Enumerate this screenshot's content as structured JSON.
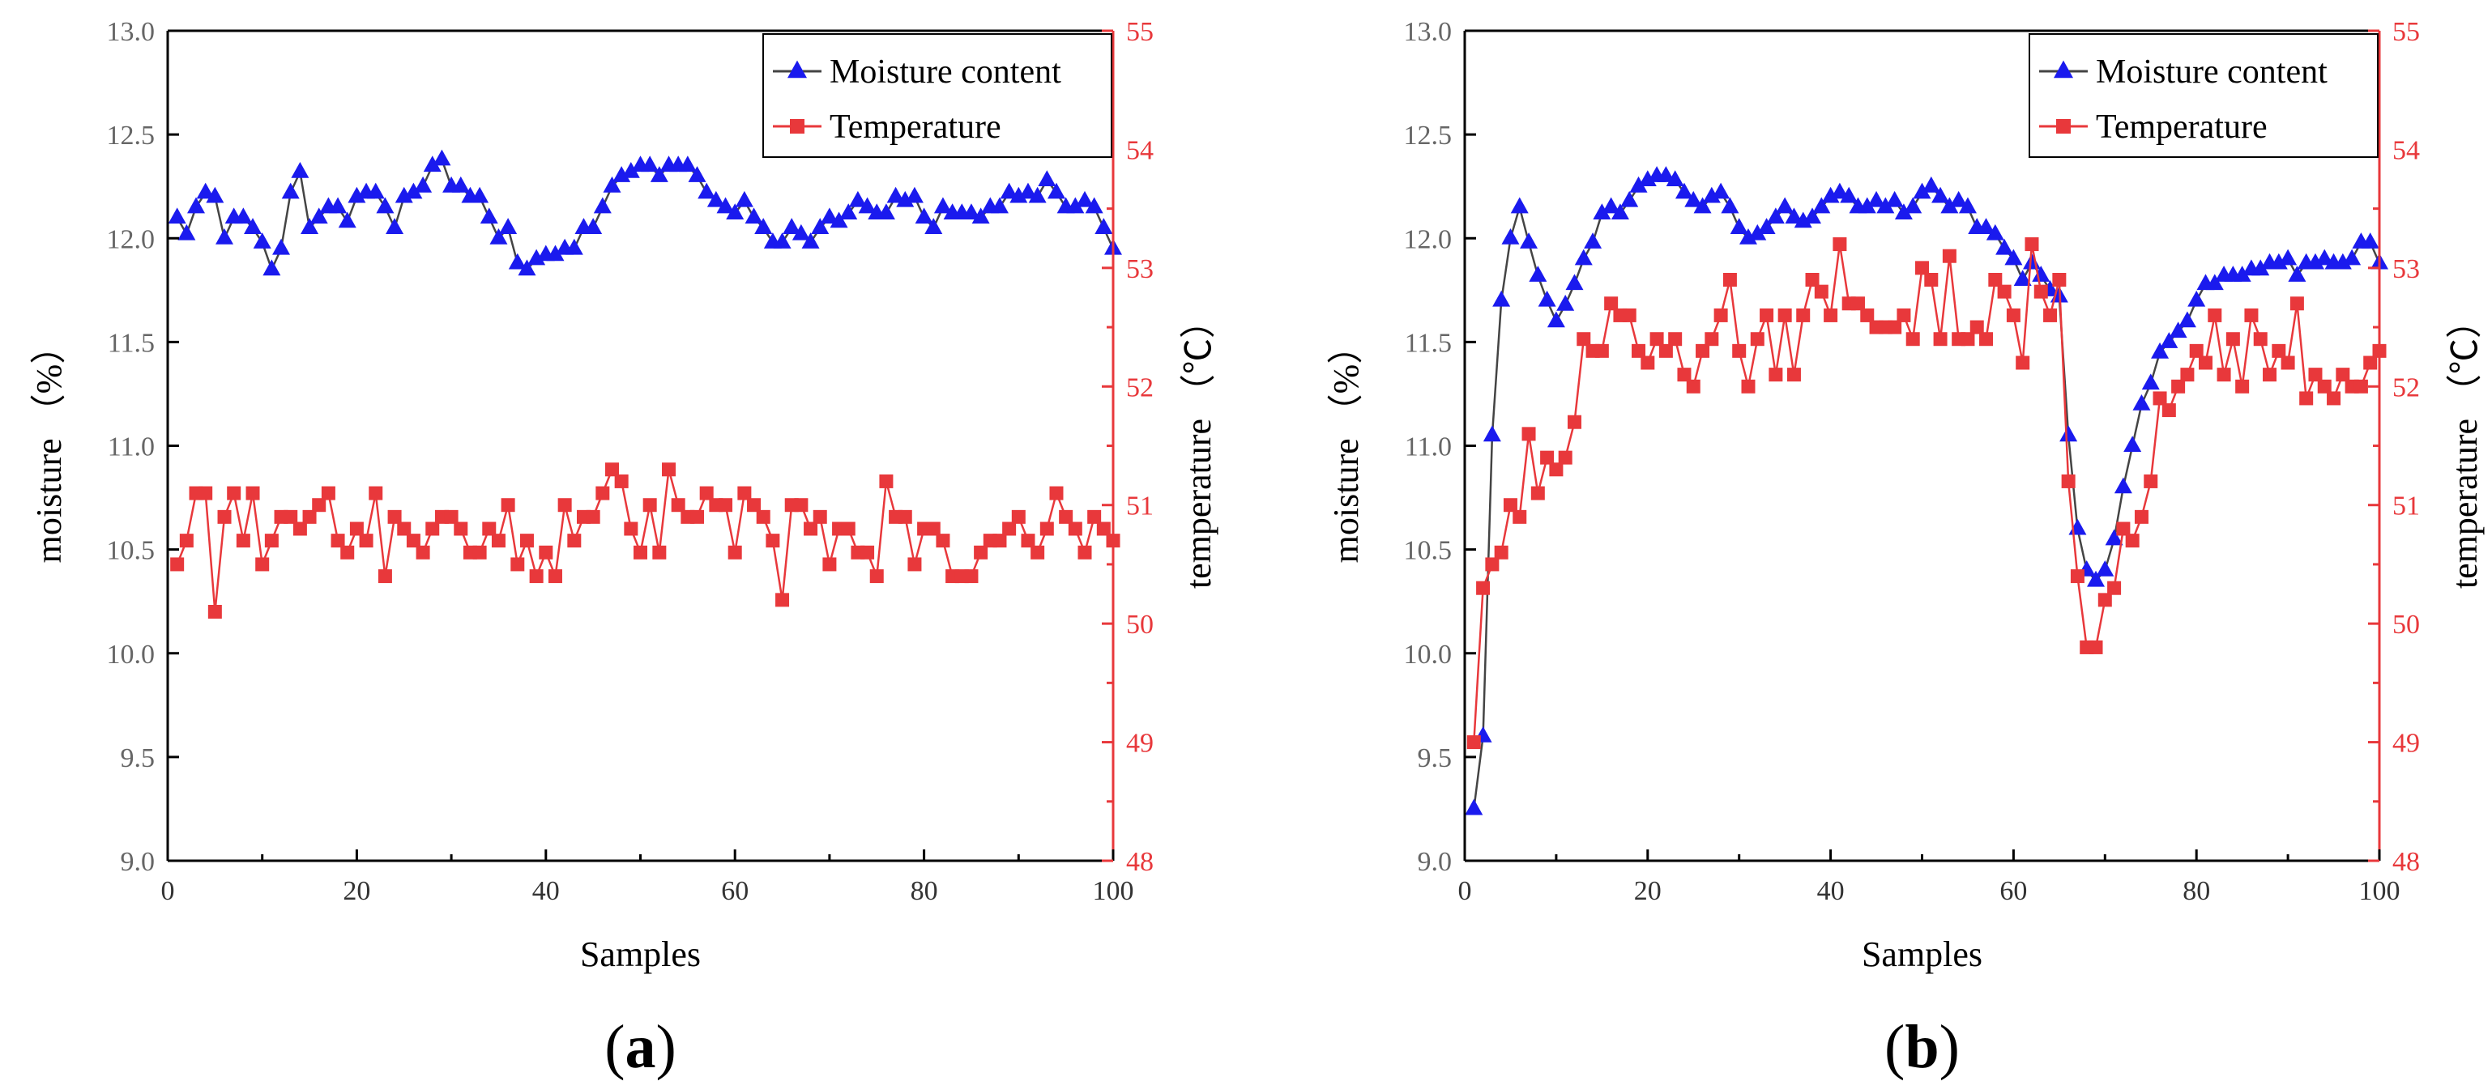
{
  "figure": {
    "background": "#ffffff"
  },
  "chart_data": [
    {
      "type": "line",
      "panel_label_open": "(",
      "panel_label_letter": "a",
      "panel_label_close": ")",
      "xlabel": "Samples",
      "ylabel": "moisture （%）",
      "y2label": "temperature （℃）",
      "xlim": [
        0,
        100
      ],
      "ylim": [
        9.0,
        13.0
      ],
      "y2lim": [
        48,
        55
      ],
      "xticks": [
        "0",
        "20",
        "40",
        "60",
        "80",
        "100"
      ],
      "yticks": [
        "9.0",
        "9.5",
        "10.0",
        "10.5",
        "11.0",
        "11.5",
        "12.0",
        "12.5",
        "13.0"
      ],
      "y2ticks": [
        "48",
        "49",
        "50",
        "51",
        "52",
        "53",
        "54",
        "55"
      ],
      "legend_position": "top-right",
      "series": [
        {
          "name": "Moisture content",
          "axis": "left",
          "marker": "triangle",
          "color": "#1a1aee",
          "line_color": "#444444",
          "x": [
            1,
            2,
            3,
            4,
            5,
            6,
            7,
            8,
            9,
            10,
            11,
            12,
            13,
            14,
            15,
            16,
            17,
            18,
            19,
            20,
            21,
            22,
            23,
            24,
            25,
            26,
            27,
            28,
            29,
            30,
            31,
            32,
            33,
            34,
            35,
            36,
            37,
            38,
            39,
            40,
            41,
            42,
            43,
            44,
            45,
            46,
            47,
            48,
            49,
            50,
            51,
            52,
            53,
            54,
            55,
            56,
            57,
            58,
            59,
            60,
            61,
            62,
            63,
            64,
            65,
            66,
            67,
            68,
            69,
            70,
            71,
            72,
            73,
            74,
            75,
            76,
            77,
            78,
            79,
            80,
            81,
            82,
            83,
            84,
            85,
            86,
            87,
            88,
            89,
            90,
            91,
            92,
            93,
            94,
            95,
            96,
            97,
            98,
            99,
            100
          ],
          "values": [
            12.1,
            12.02,
            12.15,
            12.22,
            12.2,
            12.0,
            12.1,
            12.1,
            12.05,
            11.98,
            11.85,
            11.95,
            12.22,
            12.32,
            12.05,
            12.1,
            12.15,
            12.15,
            12.08,
            12.2,
            12.22,
            12.22,
            12.15,
            12.05,
            12.2,
            12.22,
            12.25,
            12.35,
            12.38,
            12.25,
            12.25,
            12.2,
            12.2,
            12.1,
            12.0,
            12.05,
            11.88,
            11.85,
            11.9,
            11.92,
            11.92,
            11.95,
            11.95,
            12.05,
            12.05,
            12.15,
            12.25,
            12.3,
            12.32,
            12.35,
            12.35,
            12.3,
            12.35,
            12.35,
            12.35,
            12.3,
            12.22,
            12.18,
            12.15,
            12.12,
            12.18,
            12.1,
            12.05,
            11.98,
            11.98,
            12.05,
            12.02,
            11.98,
            12.05,
            12.1,
            12.08,
            12.12,
            12.18,
            12.15,
            12.12,
            12.12,
            12.2,
            12.18,
            12.2,
            12.1,
            12.05,
            12.15,
            12.12,
            12.12,
            12.12,
            12.1,
            12.15,
            12.15,
            12.22,
            12.2,
            12.22,
            12.2,
            12.28,
            12.22,
            12.15,
            12.15,
            12.18,
            12.15,
            12.05,
            11.95
          ]
        },
        {
          "name": "Temperature",
          "axis": "right",
          "marker": "square",
          "color": "#e8383b",
          "line_color": "#e8383b",
          "x": [
            1,
            2,
            3,
            4,
            5,
            6,
            7,
            8,
            9,
            10,
            11,
            12,
            13,
            14,
            15,
            16,
            17,
            18,
            19,
            20,
            21,
            22,
            23,
            24,
            25,
            26,
            27,
            28,
            29,
            30,
            31,
            32,
            33,
            34,
            35,
            36,
            37,
            38,
            39,
            40,
            41,
            42,
            43,
            44,
            45,
            46,
            47,
            48,
            49,
            50,
            51,
            52,
            53,
            54,
            55,
            56,
            57,
            58,
            59,
            60,
            61,
            62,
            63,
            64,
            65,
            66,
            67,
            68,
            69,
            70,
            71,
            72,
            73,
            74,
            75,
            76,
            77,
            78,
            79,
            80,
            81,
            82,
            83,
            84,
            85,
            86,
            87,
            88,
            89,
            90,
            91,
            92,
            93,
            94,
            95,
            96,
            97,
            98,
            99,
            100
          ],
          "values": [
            50.5,
            50.7,
            51.1,
            51.1,
            50.1,
            50.9,
            51.1,
            50.7,
            51.1,
            50.5,
            50.7,
            50.9,
            50.9,
            50.8,
            50.9,
            51.0,
            51.1,
            50.7,
            50.6,
            50.8,
            50.7,
            51.1,
            50.4,
            50.9,
            50.8,
            50.7,
            50.6,
            50.8,
            50.9,
            50.9,
            50.8,
            50.6,
            50.6,
            50.8,
            50.7,
            51.0,
            50.5,
            50.7,
            50.4,
            50.6,
            50.4,
            51.0,
            50.7,
            50.9,
            50.9,
            51.1,
            51.3,
            51.2,
            50.8,
            50.6,
            51.0,
            50.6,
            51.3,
            51.0,
            50.9,
            50.9,
            51.1,
            51.0,
            51.0,
            50.6,
            51.1,
            51.0,
            50.9,
            50.7,
            50.2,
            51.0,
            51.0,
            50.8,
            50.9,
            50.5,
            50.8,
            50.8,
            50.6,
            50.6,
            50.4,
            51.2,
            50.9,
            50.9,
            50.5,
            50.8,
            50.8,
            50.7,
            50.4,
            50.4,
            50.4,
            50.6,
            50.7,
            50.7,
            50.8,
            50.9,
            50.7,
            50.6,
            50.8,
            51.1,
            50.9,
            50.8,
            50.6,
            50.9,
            50.8,
            50.7
          ]
        }
      ]
    },
    {
      "type": "line",
      "panel_label_open": "(",
      "panel_label_letter": "b",
      "panel_label_close": ")",
      "xlabel": "Samples",
      "ylabel": "moisture （%）",
      "y2label": "temperature （℃）",
      "xlim": [
        0,
        100
      ],
      "ylim": [
        9.0,
        13.0
      ],
      "y2lim": [
        48,
        55
      ],
      "xticks": [
        "0",
        "20",
        "40",
        "60",
        "80",
        "100"
      ],
      "yticks": [
        "9.0",
        "9.5",
        "10.0",
        "10.5",
        "11.0",
        "11.5",
        "12.0",
        "12.5",
        "13.0"
      ],
      "y2ticks": [
        "48",
        "49",
        "50",
        "51",
        "52",
        "53",
        "54",
        "55"
      ],
      "legend_position": "top-right",
      "series": [
        {
          "name": "Moisture content",
          "axis": "left",
          "marker": "triangle",
          "color": "#1a1aee",
          "line_color": "#444444",
          "x": [
            1,
            2,
            3,
            4,
            5,
            6,
            7,
            8,
            9,
            10,
            11,
            12,
            13,
            14,
            15,
            16,
            17,
            18,
            19,
            20,
            21,
            22,
            23,
            24,
            25,
            26,
            27,
            28,
            29,
            30,
            31,
            32,
            33,
            34,
            35,
            36,
            37,
            38,
            39,
            40,
            41,
            42,
            43,
            44,
            45,
            46,
            47,
            48,
            49,
            50,
            51,
            52,
            53,
            54,
            55,
            56,
            57,
            58,
            59,
            60,
            61,
            62,
            63,
            64,
            65,
            66,
            67,
            68,
            69,
            70,
            71,
            72,
            73,
            74,
            75,
            76,
            77,
            78,
            79,
            80,
            81,
            82,
            83,
            84,
            85,
            86,
            87,
            88,
            89,
            90,
            91,
            92,
            93,
            94,
            95,
            96,
            97,
            98,
            99,
            100
          ],
          "values": [
            9.25,
            9.6,
            11.05,
            11.7,
            12.0,
            12.15,
            11.98,
            11.82,
            11.7,
            11.6,
            11.68,
            11.78,
            11.9,
            11.98,
            12.12,
            12.15,
            12.12,
            12.18,
            12.25,
            12.28,
            12.3,
            12.3,
            12.28,
            12.22,
            12.18,
            12.15,
            12.2,
            12.22,
            12.15,
            12.05,
            12.0,
            12.02,
            12.05,
            12.1,
            12.15,
            12.1,
            12.08,
            12.1,
            12.15,
            12.2,
            12.22,
            12.2,
            12.15,
            12.15,
            12.18,
            12.15,
            12.18,
            12.12,
            12.15,
            12.22,
            12.25,
            12.2,
            12.15,
            12.18,
            12.15,
            12.05,
            12.05,
            12.02,
            11.95,
            11.9,
            11.8,
            11.88,
            11.82,
            11.75,
            11.72,
            11.05,
            10.6,
            10.4,
            10.35,
            10.4,
            10.55,
            10.8,
            11.0,
            11.2,
            11.3,
            11.45,
            11.5,
            11.55,
            11.6,
            11.7,
            11.78,
            11.78,
            11.82,
            11.82,
            11.82,
            11.85,
            11.85,
            11.88,
            11.88,
            11.9,
            11.82,
            11.88,
            11.88,
            11.9,
            11.88,
            11.88,
            11.9,
            11.98,
            11.98,
            11.88
          ]
        },
        {
          "name": "Temperature",
          "axis": "right",
          "marker": "square",
          "color": "#e8383b",
          "line_color": "#e8383b",
          "x": [
            1,
            2,
            3,
            4,
            5,
            6,
            7,
            8,
            9,
            10,
            11,
            12,
            13,
            14,
            15,
            16,
            17,
            18,
            19,
            20,
            21,
            22,
            23,
            24,
            25,
            26,
            27,
            28,
            29,
            30,
            31,
            32,
            33,
            34,
            35,
            36,
            37,
            38,
            39,
            40,
            41,
            42,
            43,
            44,
            45,
            46,
            47,
            48,
            49,
            50,
            51,
            52,
            53,
            54,
            55,
            56,
            57,
            58,
            59,
            60,
            61,
            62,
            63,
            64,
            65,
            66,
            67,
            68,
            69,
            70,
            71,
            72,
            73,
            74,
            75,
            76,
            77,
            78,
            79,
            80,
            81,
            82,
            83,
            84,
            85,
            86,
            87,
            88,
            89,
            90,
            91,
            92,
            93,
            94,
            95,
            96,
            97,
            98,
            99,
            100
          ],
          "values": [
            49.0,
            50.3,
            50.5,
            50.6,
            51.0,
            50.9,
            51.6,
            51.1,
            51.4,
            51.3,
            51.4,
            51.7,
            52.4,
            52.3,
            52.3,
            52.7,
            52.6,
            52.6,
            52.3,
            52.2,
            52.4,
            52.3,
            52.4,
            52.1,
            52.0,
            52.3,
            52.4,
            52.6,
            52.9,
            52.3,
            52.0,
            52.4,
            52.6,
            52.1,
            52.6,
            52.1,
            52.6,
            52.9,
            52.8,
            52.6,
            53.2,
            52.7,
            52.7,
            52.6,
            52.5,
            52.5,
            52.5,
            52.6,
            52.4,
            53.0,
            52.9,
            52.4,
            53.1,
            52.4,
            52.4,
            52.5,
            52.4,
            52.9,
            52.8,
            52.6,
            52.2,
            53.2,
            52.8,
            52.6,
            52.9,
            51.2,
            50.4,
            49.8,
            49.8,
            50.2,
            50.3,
            50.8,
            50.7,
            50.9,
            51.2,
            51.9,
            51.8,
            52.0,
            52.1,
            52.3,
            52.2,
            52.6,
            52.1,
            52.4,
            52.0,
            52.6,
            52.4,
            52.1,
            52.3,
            52.2,
            52.7,
            51.9,
            52.1,
            52.0,
            51.9,
            52.1,
            52.0,
            52.0,
            52.2,
            52.3
          ]
        }
      ]
    }
  ]
}
